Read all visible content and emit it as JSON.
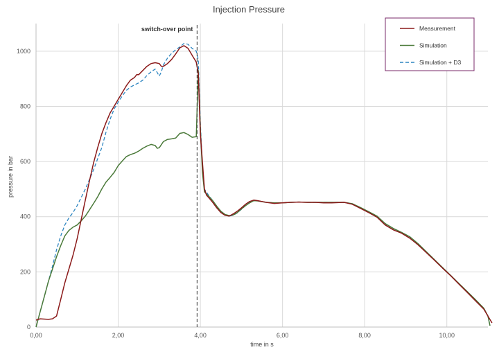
{
  "chart_data": {
    "type": "line",
    "title": "Injection Pressure",
    "xlabel": "time in s",
    "ylabel": "pressure in bar",
    "xlim": [
      0,
      11
    ],
    "ylim": [
      0,
      1100
    ],
    "x_ticks": [
      "0,00",
      "2,00",
      "4,00",
      "6,00",
      "8,00",
      "10,00"
    ],
    "x_tick_values": [
      0,
      2,
      4,
      6,
      8,
      10
    ],
    "y_ticks": [
      "0",
      "200",
      "400",
      "600",
      "800",
      "1000"
    ],
    "y_tick_values": [
      0,
      200,
      400,
      600,
      800,
      1000
    ],
    "grid": true,
    "legend_position": "top-right",
    "annotation": {
      "label": "switch-over point",
      "x": 3.92
    },
    "series": [
      {
        "name": "Measurement",
        "color": "#8b1a1a",
        "dash": "solid",
        "points": [
          [
            0.0,
            25
          ],
          [
            0.1,
            30
          ],
          [
            0.3,
            28
          ],
          [
            0.4,
            30
          ],
          [
            0.5,
            40
          ],
          [
            0.6,
            100
          ],
          [
            0.7,
            160
          ],
          [
            0.8,
            210
          ],
          [
            0.9,
            260
          ],
          [
            1.0,
            320
          ],
          [
            1.1,
            390
          ],
          [
            1.2,
            460
          ],
          [
            1.3,
            530
          ],
          [
            1.4,
            595
          ],
          [
            1.5,
            650
          ],
          [
            1.6,
            700
          ],
          [
            1.7,
            740
          ],
          [
            1.8,
            775
          ],
          [
            1.9,
            800
          ],
          [
            2.0,
            825
          ],
          [
            2.1,
            850
          ],
          [
            2.2,
            875
          ],
          [
            2.3,
            895
          ],
          [
            2.4,
            905
          ],
          [
            2.45,
            915
          ],
          [
            2.5,
            915
          ],
          [
            2.6,
            930
          ],
          [
            2.7,
            945
          ],
          [
            2.8,
            955
          ],
          [
            2.9,
            958
          ],
          [
            3.0,
            955
          ],
          [
            3.05,
            945
          ],
          [
            3.1,
            945
          ],
          [
            3.2,
            955
          ],
          [
            3.3,
            970
          ],
          [
            3.4,
            990
          ],
          [
            3.5,
            1012
          ],
          [
            3.6,
            1020
          ],
          [
            3.7,
            1010
          ],
          [
            3.8,
            985
          ],
          [
            3.9,
            960
          ],
          [
            3.95,
            920
          ],
          [
            4.0,
            700
          ],
          [
            4.1,
            500
          ],
          [
            4.15,
            478
          ],
          [
            4.2,
            470
          ],
          [
            4.3,
            452
          ],
          [
            4.4,
            432
          ],
          [
            4.5,
            415
          ],
          [
            4.6,
            405
          ],
          [
            4.7,
            402
          ],
          [
            4.8,
            410
          ],
          [
            4.9,
            420
          ],
          [
            5.0,
            432
          ],
          [
            5.1,
            445
          ],
          [
            5.2,
            455
          ],
          [
            5.3,
            460
          ],
          [
            5.4,
            458
          ],
          [
            5.6,
            452
          ],
          [
            5.8,
            448
          ],
          [
            6.0,
            450
          ],
          [
            6.2,
            452
          ],
          [
            6.4,
            453
          ],
          [
            6.6,
            452
          ],
          [
            6.8,
            452
          ],
          [
            7.0,
            450
          ],
          [
            7.2,
            450
          ],
          [
            7.5,
            452
          ],
          [
            7.7,
            445
          ],
          [
            7.9,
            430
          ],
          [
            8.1,
            415
          ],
          [
            8.3,
            398
          ],
          [
            8.5,
            370
          ],
          [
            8.7,
            352
          ],
          [
            8.9,
            340
          ],
          [
            9.1,
            322
          ],
          [
            9.3,
            298
          ],
          [
            9.5,
            270
          ],
          [
            9.7,
            242
          ],
          [
            9.9,
            213
          ],
          [
            10.1,
            185
          ],
          [
            10.3,
            155
          ],
          [
            10.5,
            125
          ],
          [
            10.7,
            95
          ],
          [
            10.9,
            65
          ],
          [
            11.0,
            40
          ],
          [
            11.1,
            15
          ]
        ]
      },
      {
        "name": "Simulation",
        "color": "#4b7a3a",
        "dash": "solid",
        "points": [
          [
            0.0,
            0
          ],
          [
            0.1,
            55
          ],
          [
            0.2,
            110
          ],
          [
            0.3,
            165
          ],
          [
            0.4,
            210
          ],
          [
            0.5,
            255
          ],
          [
            0.6,
            295
          ],
          [
            0.7,
            330
          ],
          [
            0.8,
            350
          ],
          [
            0.9,
            362
          ],
          [
            1.0,
            370
          ],
          [
            1.1,
            385
          ],
          [
            1.2,
            402
          ],
          [
            1.3,
            425
          ],
          [
            1.4,
            448
          ],
          [
            1.5,
            472
          ],
          [
            1.6,
            500
          ],
          [
            1.7,
            525
          ],
          [
            1.8,
            542
          ],
          [
            1.9,
            560
          ],
          [
            2.0,
            585
          ],
          [
            2.1,
            602
          ],
          [
            2.2,
            618
          ],
          [
            2.3,
            625
          ],
          [
            2.4,
            630
          ],
          [
            2.5,
            638
          ],
          [
            2.6,
            648
          ],
          [
            2.7,
            656
          ],
          [
            2.8,
            662
          ],
          [
            2.9,
            658
          ],
          [
            2.95,
            648
          ],
          [
            3.0,
            650
          ],
          [
            3.1,
            672
          ],
          [
            3.2,
            680
          ],
          [
            3.3,
            682
          ],
          [
            3.4,
            685
          ],
          [
            3.5,
            702
          ],
          [
            3.6,
            705
          ],
          [
            3.7,
            698
          ],
          [
            3.8,
            688
          ],
          [
            3.9,
            690
          ],
          [
            3.95,
            930
          ],
          [
            4.0,
            720
          ],
          [
            4.05,
            560
          ],
          [
            4.1,
            490
          ],
          [
            4.2,
            475
          ],
          [
            4.3,
            458
          ],
          [
            4.4,
            438
          ],
          [
            4.5,
            420
          ],
          [
            4.6,
            408
          ],
          [
            4.7,
            404
          ],
          [
            4.8,
            406
          ],
          [
            4.9,
            415
          ],
          [
            5.0,
            428
          ],
          [
            5.1,
            440
          ],
          [
            5.2,
            450
          ],
          [
            5.3,
            458
          ],
          [
            5.4,
            457
          ],
          [
            5.6,
            452
          ],
          [
            5.8,
            450
          ],
          [
            6.0,
            450
          ],
          [
            6.2,
            452
          ],
          [
            6.4,
            453
          ],
          [
            6.6,
            452
          ],
          [
            6.8,
            452
          ],
          [
            7.0,
            452
          ],
          [
            7.2,
            452
          ],
          [
            7.5,
            452
          ],
          [
            7.7,
            447
          ],
          [
            7.9,
            433
          ],
          [
            8.1,
            418
          ],
          [
            8.3,
            402
          ],
          [
            8.5,
            375
          ],
          [
            8.7,
            357
          ],
          [
            8.9,
            343
          ],
          [
            9.1,
            327
          ],
          [
            9.3,
            302
          ],
          [
            9.5,
            273
          ],
          [
            9.7,
            244
          ],
          [
            9.9,
            215
          ],
          [
            10.1,
            186
          ],
          [
            10.3,
            157
          ],
          [
            10.5,
            128
          ],
          [
            10.7,
            99
          ],
          [
            10.9,
            68
          ],
          [
            11.0,
            40
          ],
          [
            11.05,
            5
          ]
        ]
      },
      {
        "name": "Simulation + D3",
        "color": "#2e86c1",
        "dash": "dashed",
        "points": [
          [
            0.0,
            0
          ],
          [
            0.1,
            55
          ],
          [
            0.2,
            110
          ],
          [
            0.3,
            165
          ],
          [
            0.4,
            220
          ],
          [
            0.5,
            280
          ],
          [
            0.6,
            330
          ],
          [
            0.7,
            370
          ],
          [
            0.8,
            395
          ],
          [
            0.9,
            415
          ],
          [
            1.0,
            440
          ],
          [
            1.1,
            470
          ],
          [
            1.2,
            500
          ],
          [
            1.3,
            535
          ],
          [
            1.4,
            570
          ],
          [
            1.5,
            610
          ],
          [
            1.6,
            650
          ],
          [
            1.7,
            705
          ],
          [
            1.8,
            752
          ],
          [
            1.9,
            790
          ],
          [
            2.0,
            815
          ],
          [
            2.1,
            838
          ],
          [
            2.2,
            858
          ],
          [
            2.3,
            870
          ],
          [
            2.4,
            878
          ],
          [
            2.5,
            885
          ],
          [
            2.6,
            895
          ],
          [
            2.7,
            912
          ],
          [
            2.8,
            925
          ],
          [
            2.9,
            935
          ],
          [
            3.0,
            910
          ],
          [
            3.05,
            925
          ],
          [
            3.1,
            950
          ],
          [
            3.2,
            975
          ],
          [
            3.3,
            992
          ],
          [
            3.4,
            1005
          ],
          [
            3.5,
            1015
          ],
          [
            3.6,
            1028
          ],
          [
            3.7,
            1025
          ],
          [
            3.8,
            1010
          ],
          [
            3.9,
            1000
          ],
          [
            3.95,
            970
          ],
          [
            4.0,
            740
          ],
          [
            4.05,
            580
          ],
          [
            4.1,
            500
          ],
          [
            4.2,
            478
          ],
          [
            4.3,
            458
          ],
          [
            4.4,
            436
          ],
          [
            4.5,
            418
          ],
          [
            4.6,
            406
          ],
          [
            4.7,
            402
          ],
          [
            4.8,
            405
          ],
          [
            4.9,
            414
          ],
          [
            5.0,
            427
          ],
          [
            5.1,
            440
          ],
          [
            5.2,
            451
          ],
          [
            5.3,
            458
          ],
          [
            5.4,
            457
          ],
          [
            5.6,
            452
          ],
          [
            5.8,
            450
          ],
          [
            6.0,
            450
          ],
          [
            6.2,
            452
          ],
          [
            6.4,
            453
          ],
          [
            6.6,
            452
          ],
          [
            6.8,
            452
          ],
          [
            7.0,
            452
          ],
          [
            7.2,
            452
          ],
          [
            7.5,
            452
          ],
          [
            7.7,
            447
          ],
          [
            7.9,
            433
          ],
          [
            8.1,
            418
          ],
          [
            8.3,
            402
          ],
          [
            8.5,
            375
          ],
          [
            8.7,
            357
          ],
          [
            8.9,
            343
          ],
          [
            9.1,
            327
          ],
          [
            9.3,
            302
          ],
          [
            9.5,
            273
          ],
          [
            9.7,
            244
          ],
          [
            9.9,
            215
          ],
          [
            10.1,
            186
          ],
          [
            10.3,
            157
          ],
          [
            10.5,
            128
          ],
          [
            10.7,
            99
          ],
          [
            10.9,
            68
          ],
          [
            11.0,
            40
          ],
          [
            11.05,
            5
          ]
        ]
      }
    ]
  }
}
